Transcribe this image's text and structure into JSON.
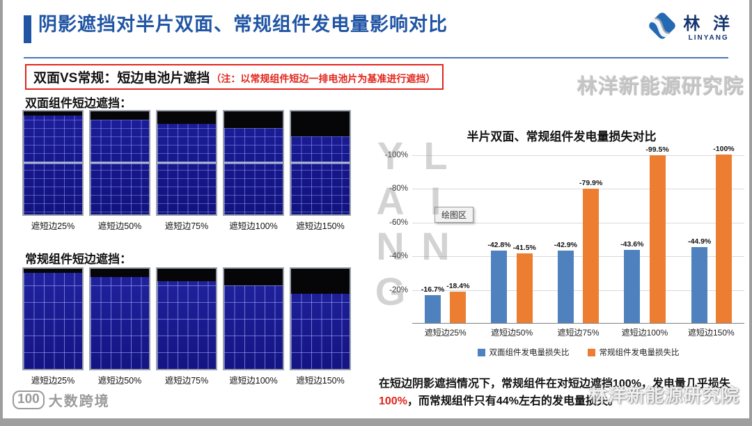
{
  "slide": {
    "title": "阴影遮挡对半片双面、常规组件发电量影响对比",
    "subtitle_main": "双面VS常规：短边电池片遮挡",
    "subtitle_note": "（注：以常规组件短边一排电池片为基准进行遮挡）",
    "section_bifacial": "双面组件短边遮挡：",
    "section_conventional": "常规组件短边遮挡："
  },
  "logo": {
    "brand_cn": "林 洋",
    "brand_en": "LINYANG"
  },
  "watermarks": {
    "vertical": "LIN YANG",
    "top_right": "林洋新能源研究院",
    "bottom_right": "林洋新能源研究院",
    "bottom_left_logo": "100",
    "bottom_left": "大数跨境"
  },
  "panels": {
    "shade_percents": [
      25,
      50,
      75,
      100,
      150
    ],
    "bifacial_labels": [
      "遮短边25%",
      "遮短边50%",
      "遮短边75%",
      "遮短边100%",
      "遮短边150%"
    ],
    "conventional_labels": [
      "遮短边25%",
      "遮短边50%",
      "遮短边75%",
      "遮短边100%",
      "遮短边150%"
    ]
  },
  "chart_data": {
    "type": "bar",
    "title": "半片双面、常规组件发电量损失对比",
    "categories": [
      "遮短边25%",
      "遮短边50%",
      "遮短边75%",
      "遮短边100%",
      "遮短边150%"
    ],
    "series": [
      {
        "name": "双面组件发电量损失比",
        "color": "#4e81bd",
        "values": [
          -16.7,
          -42.8,
          -42.9,
          -43.6,
          -44.9
        ],
        "labels": [
          "-16.7%",
          "-42.8%",
          "-42.9%",
          "-43.6%",
          "-44.9%"
        ]
      },
      {
        "name": "常规组件发电量损失比",
        "color": "#ed7d31",
        "values": [
          -18.4,
          -41.5,
          -79.9,
          -99.5,
          -100
        ],
        "labels": [
          "-18.4%",
          "-41.5%",
          "-79.9%",
          "-99.5%",
          "-100%"
        ]
      }
    ],
    "y_ticks": [
      "-100%",
      "-80%",
      "-60%",
      "-40%",
      "-20%"
    ],
    "y_axis_reversed": true,
    "ylim": [
      0,
      -100
    ],
    "grid": true,
    "legend_position": "bottom",
    "plot_area_tooltip": "绘图区"
  },
  "conclusion": {
    "pre": "在短边阴影遮挡情况下，常规组件在对短边遮挡100%，发电量几乎损失",
    "highlight": "100%",
    "post": "，而常规组件只有44%左右的发电量损失。"
  }
}
